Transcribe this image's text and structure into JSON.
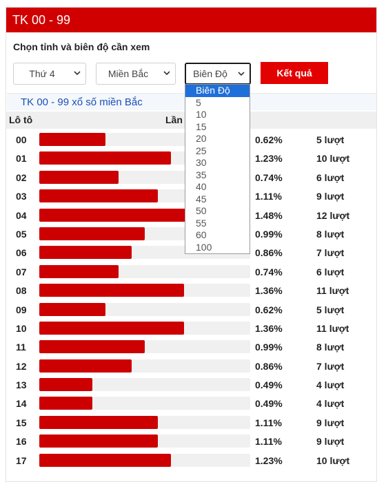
{
  "header": {
    "title": "TK 00 - 99"
  },
  "subtitle": "Chọn tỉnh và biên độ cần xem",
  "filters": {
    "day": "Thứ 4",
    "region": "Miền Bắc",
    "range": "Biên Độ",
    "submit_label": "Kết quả"
  },
  "link_text": "TK 00 - 99 xổ số miền Bắc",
  "table": {
    "col_loto": "Lô tô",
    "col_times": "Lần",
    "rows": [
      {
        "num": "00",
        "pct": "0.62%",
        "count": "5 lượt",
        "value": 5
      },
      {
        "num": "01",
        "pct": "1.23%",
        "count": "10 lượt",
        "value": 10
      },
      {
        "num": "02",
        "pct": "0.74%",
        "count": "6 lượt",
        "value": 6
      },
      {
        "num": "03",
        "pct": "1.11%",
        "count": "9 lượt",
        "value": 9
      },
      {
        "num": "04",
        "pct": "1.48%",
        "count": "12 lượt",
        "value": 12
      },
      {
        "num": "05",
        "pct": "0.99%",
        "count": "8 lượt",
        "value": 8
      },
      {
        "num": "06",
        "pct": "0.86%",
        "count": "7 lượt",
        "value": 7
      },
      {
        "num": "07",
        "pct": "0.74%",
        "count": "6 lượt",
        "value": 6
      },
      {
        "num": "08",
        "pct": "1.36%",
        "count": "11 lượt",
        "value": 11
      },
      {
        "num": "09",
        "pct": "0.62%",
        "count": "5 lượt",
        "value": 5
      },
      {
        "num": "10",
        "pct": "1.36%",
        "count": "11 lượt",
        "value": 11
      },
      {
        "num": "11",
        "pct": "0.99%",
        "count": "8 lượt",
        "value": 8
      },
      {
        "num": "12",
        "pct": "0.86%",
        "count": "7 lượt",
        "value": 7
      },
      {
        "num": "13",
        "pct": "0.49%",
        "count": "4 lượt",
        "value": 4
      },
      {
        "num": "14",
        "pct": "0.49%",
        "count": "4 lượt",
        "value": 4
      },
      {
        "num": "15",
        "pct": "1.11%",
        "count": "9 lượt",
        "value": 9
      },
      {
        "num": "16",
        "pct": "1.11%",
        "count": "9 lượt",
        "value": 9
      },
      {
        "num": "17",
        "pct": "1.23%",
        "count": "10 lượt",
        "value": 10
      }
    ]
  },
  "dropdown_options": [
    "Biên Độ",
    "5",
    "10",
    "15",
    "20",
    "25",
    "30",
    "35",
    "40",
    "45",
    "50",
    "55",
    "60",
    "100"
  ],
  "colors": {
    "brand_red": "#d00000",
    "bar_red": "#cc0000",
    "link_blue": "#1a4fb8",
    "highlight_blue": "#1e6fd9"
  }
}
